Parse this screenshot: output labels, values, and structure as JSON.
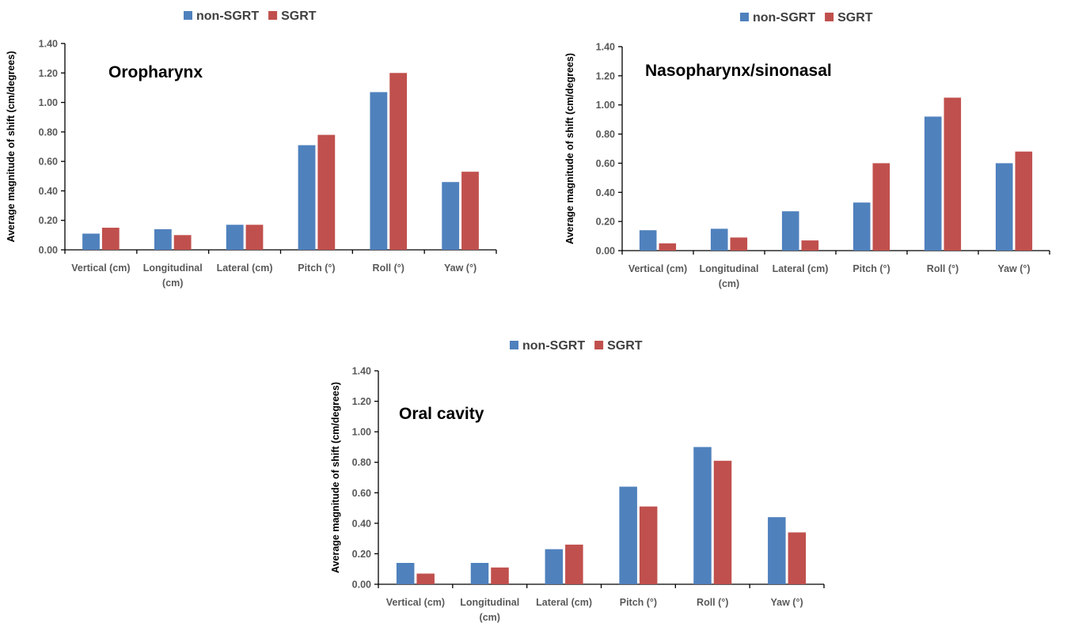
{
  "colors": {
    "non_sgrt": "#4F81BD",
    "sgrt": "#C0504D"
  },
  "chart_data": [
    {
      "type": "bar",
      "title": "Oropharynx",
      "ylabel": "Average magnitude of shift (cm/degrees)",
      "ylim": [
        0,
        1.4
      ],
      "yticks": [
        "0.00",
        "0.20",
        "0.40",
        "0.60",
        "0.80",
        "1.00",
        "1.20",
        "1.40"
      ],
      "categories": [
        [
          "Vertical (cm)"
        ],
        [
          "Longitudinal",
          "(cm)"
        ],
        [
          "Lateral (cm)"
        ],
        [
          "Pitch (°)"
        ],
        [
          "Roll (°)"
        ],
        [
          "Yaw (°)"
        ]
      ],
      "series": [
        {
          "name": "non-SGRT",
          "values": [
            0.11,
            0.14,
            0.17,
            0.71,
            1.07,
            0.46
          ]
        },
        {
          "name": "SGRT",
          "values": [
            0.15,
            0.1,
            0.17,
            0.78,
            1.2,
            0.53
          ]
        }
      ],
      "legend": "top",
      "grid": false
    },
    {
      "type": "bar",
      "title": "Nasopharynx/sinonasal",
      "ylabel": "Average magnitude of shift (cm/degrees)",
      "ylim": [
        0,
        1.4
      ],
      "yticks": [
        "0.00",
        "0.20",
        "0.40",
        "0.60",
        "0.80",
        "1.00",
        "1.20",
        "1.40"
      ],
      "categories": [
        [
          "Vertical (cm)"
        ],
        [
          "Longitudinal",
          "(cm)"
        ],
        [
          "Lateral (cm)"
        ],
        [
          "Pitch (°)"
        ],
        [
          "Roll (°)"
        ],
        [
          "Yaw (°)"
        ]
      ],
      "series": [
        {
          "name": "non-SGRT",
          "values": [
            0.14,
            0.15,
            0.27,
            0.33,
            0.92,
            0.6
          ]
        },
        {
          "name": "SGRT",
          "values": [
            0.05,
            0.09,
            0.07,
            0.6,
            1.05,
            0.68
          ]
        }
      ],
      "legend": "top",
      "grid": false
    },
    {
      "type": "bar",
      "title": "Oral cavity",
      "ylabel": "Average magnitude of shift (cm/degrees)",
      "ylim": [
        0,
        1.4
      ],
      "yticks": [
        "0.00",
        "0.20",
        "0.40",
        "0.60",
        "0.80",
        "1.00",
        "1.20",
        "1.40"
      ],
      "categories": [
        [
          "Vertical (cm)"
        ],
        [
          "Longitudinal",
          "(cm)"
        ],
        [
          "Lateral (cm)"
        ],
        [
          "Pitch (°)"
        ],
        [
          "Roll (°)"
        ],
        [
          "Yaw (°)"
        ]
      ],
      "series": [
        {
          "name": "non-SGRT",
          "values": [
            0.14,
            0.14,
            0.23,
            0.64,
            0.9,
            0.44
          ]
        },
        {
          "name": "SGRT",
          "values": [
            0.07,
            0.11,
            0.26,
            0.51,
            0.81,
            0.34
          ]
        }
      ],
      "legend": "top",
      "grid": false
    }
  ]
}
